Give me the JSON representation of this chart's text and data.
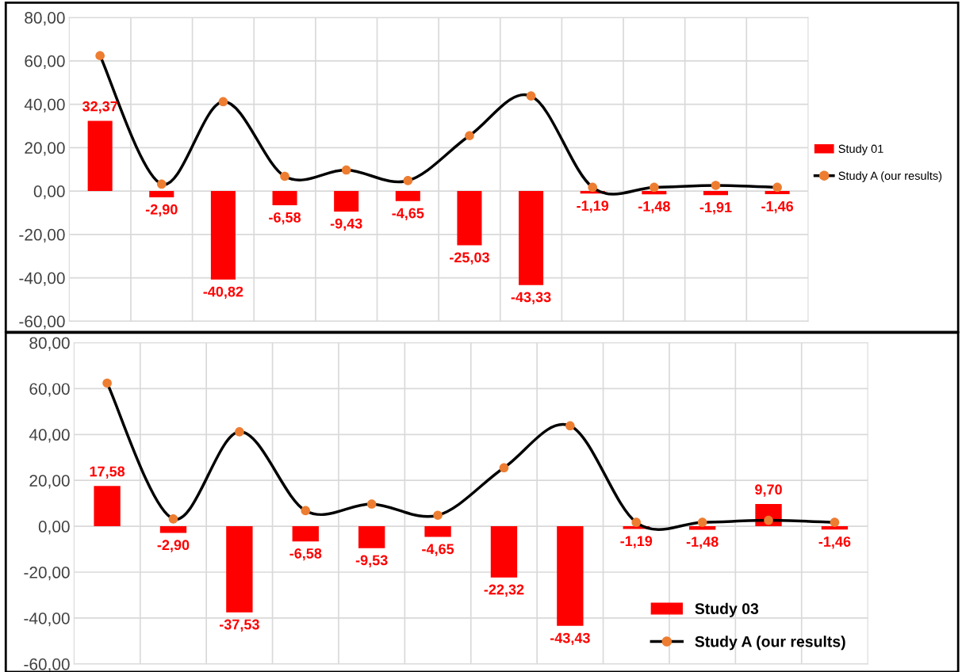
{
  "chart_data": [
    {
      "type": "bar",
      "categories": [
        null,
        null,
        null,
        null,
        null,
        null,
        null,
        null,
        null,
        null,
        null,
        null
      ],
      "series": [
        {
          "name": "Study 01",
          "color": "#ff0000",
          "values": [
            32.37,
            -2.9,
            -40.82,
            -6.58,
            -9.43,
            -4.65,
            -25.03,
            -43.33,
            -1.19,
            -1.48,
            -1.91,
            -1.46
          ],
          "value_labels": [
            "32,37",
            "-2,90",
            "-40,82",
            "-6,58",
            "-9,43",
            "-4,65",
            "-25,03",
            "-43,33",
            "-1,19",
            "-1,48",
            "-1,91",
            "-1,46"
          ]
        },
        {
          "name": "Study A (our results)",
          "type": "line",
          "color": "#000000",
          "colors": [
            "#ed7d31",
            "#ed7d31",
            "#ed7d31",
            "#ed7d31",
            "#ed7d31",
            "#ed7d31",
            "#ed7d31",
            "#ed7d31",
            "#ed7d31",
            "#ed7d31",
            "#ed7d31",
            "#ed7d31"
          ],
          "values": [
            62.4,
            3.2,
            41.2,
            6.8,
            9.7,
            4.8,
            25.5,
            43.8,
            1.7,
            1.7,
            2.6,
            1.7
          ]
        }
      ],
      "ylim": [
        -60,
        80
      ],
      "yticks": [
        {
          "value": -60,
          "label": "-60,00"
        },
        {
          "value": -40,
          "label": "-40,00"
        },
        {
          "value": -20,
          "label": "-20,00"
        },
        {
          "value": 0,
          "label": "0,00"
        },
        {
          "value": 20,
          "label": "20,00"
        },
        {
          "value": 40,
          "label": "40,00"
        },
        {
          "value": 60,
          "label": "60,00"
        },
        {
          "value": 80,
          "label": "80,00"
        }
      ],
      "grid": true,
      "legend": "right",
      "marker": "circle",
      "line_style": "solid"
    },
    {
      "type": "bar",
      "categories": [
        null,
        null,
        null,
        null,
        null,
        null,
        null,
        null,
        null,
        null,
        null,
        null
      ],
      "series": [
        {
          "name": "Study 03",
          "color": "#ff0000",
          "values": [
            17.58,
            -2.9,
            -37.53,
            -6.58,
            -9.53,
            -4.65,
            -22.32,
            -43.43,
            -1.19,
            -1.48,
            9.7,
            -1.46
          ],
          "value_labels": [
            "17,58",
            "-2,90",
            "-37,53",
            "-6,58",
            "-9,53",
            "-4,65",
            "-22,32",
            "-43,43",
            "-1,19",
            "-1,48",
            "9,70",
            "-1,46"
          ]
        },
        {
          "name": "Study A (our results)",
          "type": "line",
          "color": "#000000",
          "colors": [
            "#ed7d31",
            "#ed7d31",
            "#ed7d31",
            "#ed7d31",
            "#ed7d31",
            "#ed7d31",
            "#ed7d31",
            "#ed7d31",
            "#ed7d31",
            "#ed7d31",
            "#ed7d31",
            "#ed7d31"
          ],
          "values": [
            62.4,
            3.2,
            41.2,
            6.8,
            9.7,
            4.8,
            25.5,
            43.8,
            1.7,
            1.7,
            2.6,
            1.7
          ]
        }
      ],
      "ylim": [
        -60,
        80
      ],
      "yticks": [
        {
          "value": -60,
          "label": "-60,00"
        },
        {
          "value": -40,
          "label": "-40,00"
        },
        {
          "value": -20,
          "label": "-20,00"
        },
        {
          "value": 0,
          "label": "0,00"
        },
        {
          "value": 20,
          "label": "20,00"
        },
        {
          "value": 40,
          "label": "40,00"
        },
        {
          "value": 60,
          "label": "60,00"
        },
        {
          "value": 80,
          "label": "80,00"
        }
      ],
      "grid": true,
      "legend": "bottom right",
      "marker": "circle",
      "line_style": "solid"
    }
  ]
}
